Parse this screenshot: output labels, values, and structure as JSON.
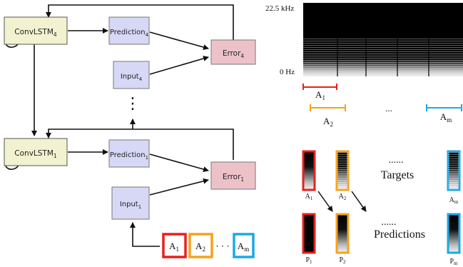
{
  "nodes": {
    "convlstm4": {
      "base": "ConvLSTM",
      "sub": "4"
    },
    "prediction4": {
      "base": "Prediction",
      "sub": "4"
    },
    "input4": {
      "base": "Input",
      "sub": "4"
    },
    "error4": {
      "base": "Error",
      "sub": "4"
    },
    "convlstm1": {
      "base": "ConvLSTM",
      "sub": "1"
    },
    "prediction1": {
      "base": "Prediction",
      "sub": "1"
    },
    "input1": {
      "base": "Input",
      "sub": "1"
    },
    "error1": {
      "base": "Error",
      "sub": "1"
    }
  },
  "vdots": "⋮",
  "sequence": {
    "items": [
      {
        "base": "A",
        "sub": "1",
        "color": "#e8201f"
      },
      {
        "base": "A",
        "sub": "2",
        "color": "#f5a21c"
      },
      {
        "base": "A",
        "sub": "m",
        "color": "#1ca8e6"
      }
    ],
    "ellipsis": "· · ·"
  },
  "spectrogram": {
    "freq_max_label": "22.5 kHz",
    "freq_min_label": "0 Hz",
    "windows": [
      {
        "base": "A",
        "sub": "1",
        "color": "#e8201f"
      },
      {
        "base": "A",
        "sub": "2",
        "color": "#f5a21c"
      },
      {
        "base": "A",
        "sub": "m",
        "color": "#1ca8e6"
      }
    ],
    "ellipsis": "..."
  },
  "targets": {
    "label": "Targets",
    "dots": "......",
    "items": [
      {
        "base": "A",
        "sub": "1",
        "color": "#e8201f"
      },
      {
        "base": "A",
        "sub": "2",
        "color": "#f5a21c"
      },
      {
        "base": "A",
        "sub": "m",
        "color": "#1ca8e6"
      }
    ]
  },
  "predictions": {
    "label": "Predictions",
    "dots": "......",
    "items": [
      {
        "base": "P",
        "sub": "1",
        "color": "#e8201f"
      },
      {
        "base": "P",
        "sub": "2",
        "color": "#f5a21c"
      },
      {
        "base": "P",
        "sub": "m",
        "color": "#1ca8e6"
      }
    ]
  },
  "colors": {
    "convlstm_fill": "#f2f2d0",
    "pred_input_fill": "#d7d8f6",
    "error_fill": "#ecc2c8",
    "red": "#e8201f",
    "orange": "#f5a21c",
    "blue": "#1ca8e6"
  }
}
